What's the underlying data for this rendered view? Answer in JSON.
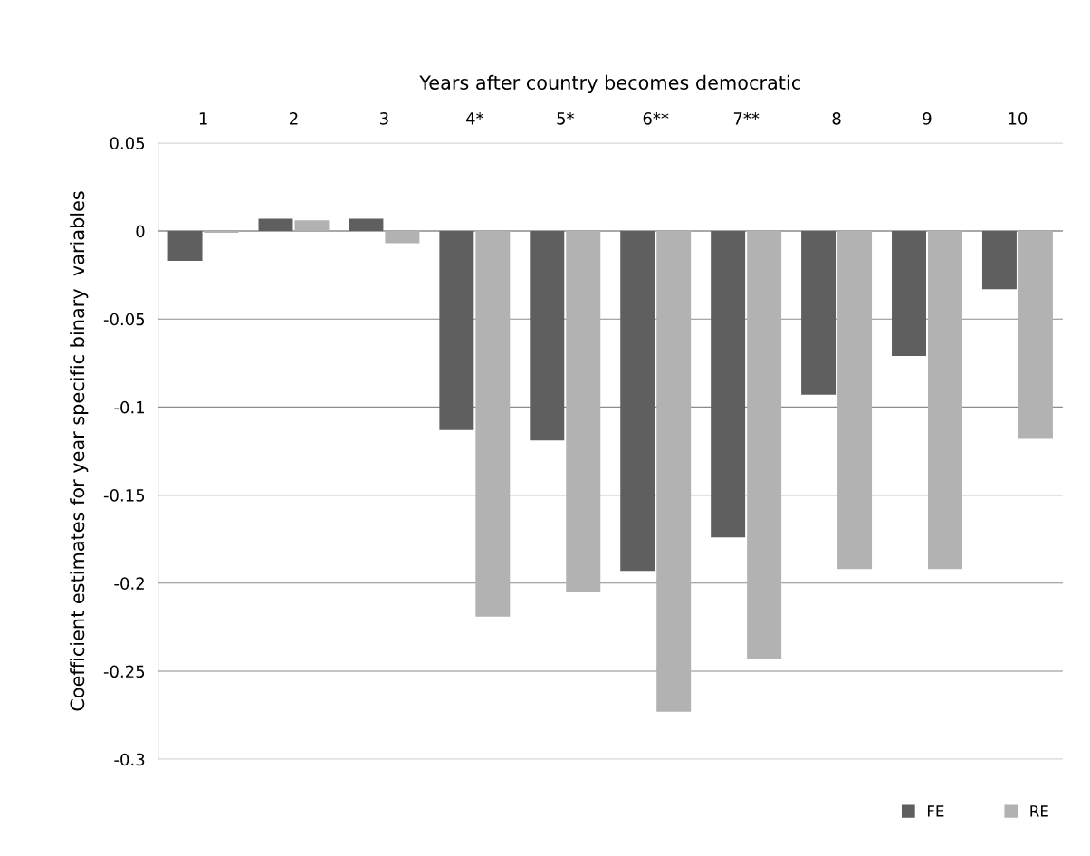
{
  "chart_data": {
    "type": "bar",
    "xlabel": "Years after country becomes democratic",
    "ylabel": "Coefficient estimates for year specific binary  variables",
    "categories": [
      "1",
      "2",
      "3",
      "4*",
      "5*",
      "6**",
      "7**",
      "8",
      "9",
      "10"
    ],
    "series": [
      {
        "name": "FE",
        "color": "#5f5f5f",
        "values": [
          -0.017,
          0.007,
          0.007,
          -0.113,
          -0.119,
          -0.193,
          -0.174,
          -0.093,
          -0.071,
          -0.033
        ]
      },
      {
        "name": "RE",
        "color": "#b2b2b2",
        "values": [
          -0.001,
          0.006,
          -0.007,
          -0.219,
          -0.205,
          -0.273,
          -0.243,
          -0.192,
          -0.192,
          -0.118
        ]
      }
    ],
    "ylim": [
      -0.3,
      0.05
    ],
    "yticks": [
      {
        "value": 0.05,
        "label": "0.05"
      },
      {
        "value": 0,
        "label": "0"
      },
      {
        "value": -0.05,
        "label": "-0.05"
      },
      {
        "value": -0.1,
        "label": "-0.1"
      },
      {
        "value": -0.15,
        "label": "-0.15"
      },
      {
        "value": -0.2,
        "label": "-0.2"
      },
      {
        "value": -0.25,
        "label": "-0.25"
      },
      {
        "value": -0.3,
        "label": "-0.3"
      }
    ],
    "grid": "y",
    "legend": "bottom right"
  }
}
